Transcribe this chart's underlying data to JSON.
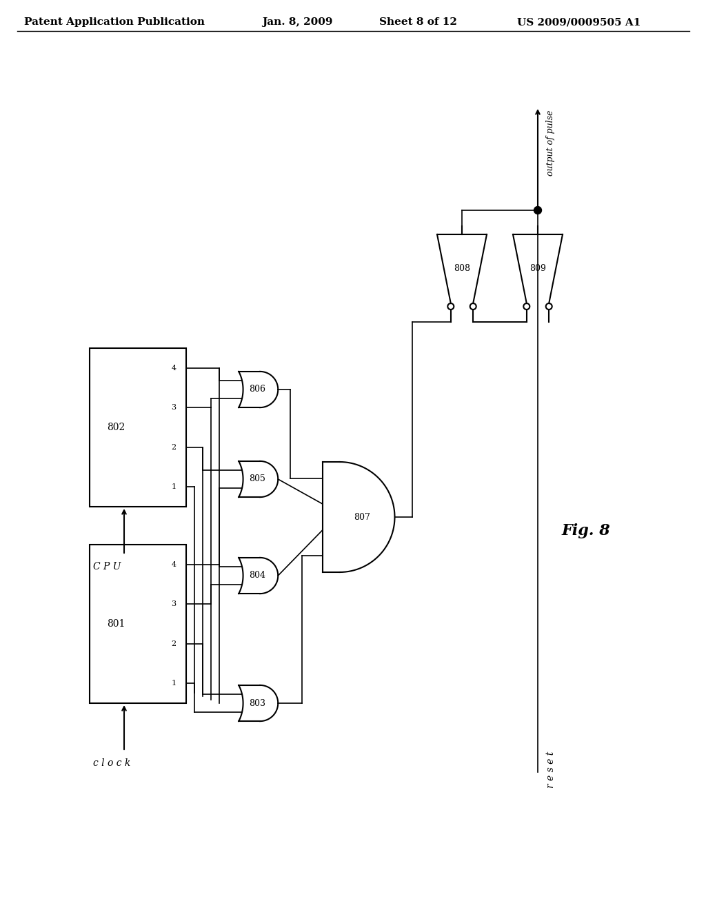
{
  "title": "Patent Application Publication",
  "date": "Jan. 8, 2009",
  "sheet": "Sheet 8 of 12",
  "patent_num": "US 2009/0009505 A1",
  "fig_label": "Fig. 8",
  "bg_color": "#ffffff",
  "line_color": "#000000",
  "header_fontsize": 11,
  "label_fontsize": 10,
  "fig_fontsize": 14,
  "text_cpu": "C P U",
  "text_clock": "c l o c k",
  "text_reset": "r e s e t",
  "text_output": "output of pulse"
}
